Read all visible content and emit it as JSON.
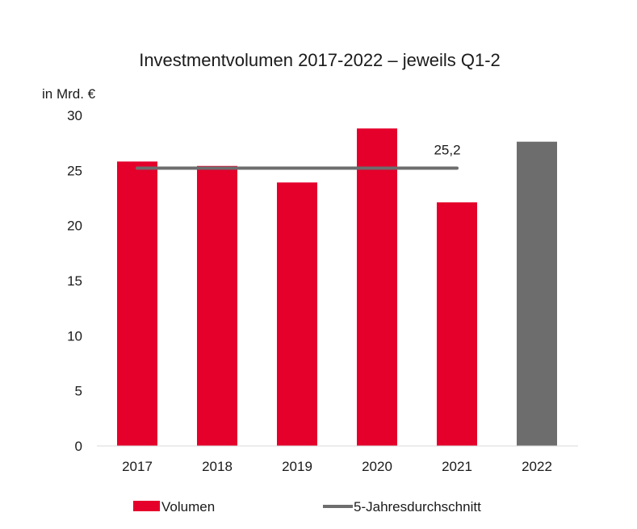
{
  "chart_data": {
    "type": "bar",
    "title": "Investmentvolumen 2017-2022 – jeweils Q1-2",
    "ylabel": "in Mrd. €",
    "xlabel": "",
    "ylim": [
      0,
      30
    ],
    "yticks": [
      "0",
      "5",
      "10",
      "15",
      "20",
      "25",
      "30"
    ],
    "categories": [
      "2017",
      "2018",
      "2019",
      "2020",
      "2021",
      "2022"
    ],
    "series": [
      {
        "name": "Volumen",
        "type": "bar",
        "values": [
          25.8,
          25.4,
          23.9,
          28.8,
          22.1,
          27.6
        ],
        "colors": [
          "#e4002b",
          "#e4002b",
          "#e4002b",
          "#e4002b",
          "#e4002b",
          "#6d6d6d"
        ]
      },
      {
        "name": "5-Jahresdurchschnitt",
        "type": "line",
        "value": 25.2,
        "span": [
          "2017",
          "2021"
        ],
        "label": "25,2",
        "color": "#6d6d6d"
      }
    ],
    "grid": false,
    "legend": "bottom"
  }
}
